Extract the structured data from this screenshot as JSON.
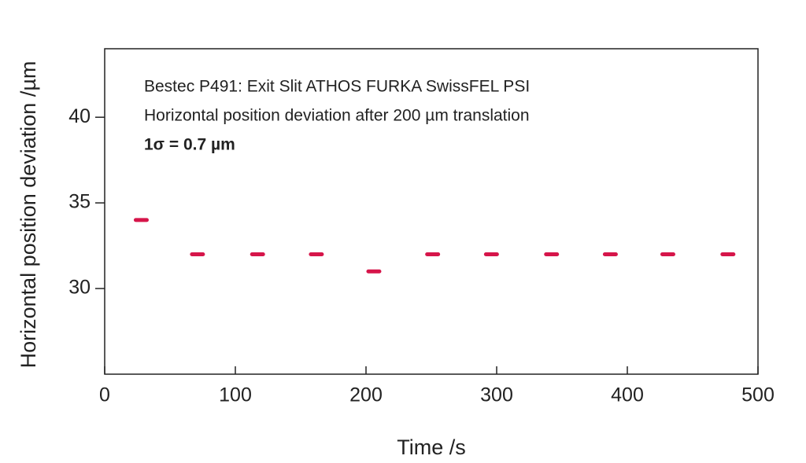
{
  "chart_data": {
    "type": "scatter",
    "annotations": [
      "Bestec P491: Exit Slit ATHOS FURKA SwissFEL PSI",
      "Horizontal position deviation after 200 µm translation",
      "1σ = 0.7 µm"
    ],
    "x_label": "Time /s",
    "y_label": "Horizontal position deviation /µm",
    "series": [
      {
        "color": "#d6154a",
        "x": [
          28,
          71,
          117,
          162,
          206,
          251,
          296,
          342,
          387,
          431,
          477
        ],
        "values": [
          34,
          32,
          32,
          32,
          31,
          32,
          32,
          32,
          32,
          32,
          32
        ]
      }
    ],
    "xlim": [
      0,
      500
    ],
    "xticks": [
      0,
      100,
      200,
      300,
      400,
      500
    ],
    "ylim": [
      25,
      44
    ],
    "yticks": [
      30,
      35,
      40
    ]
  }
}
